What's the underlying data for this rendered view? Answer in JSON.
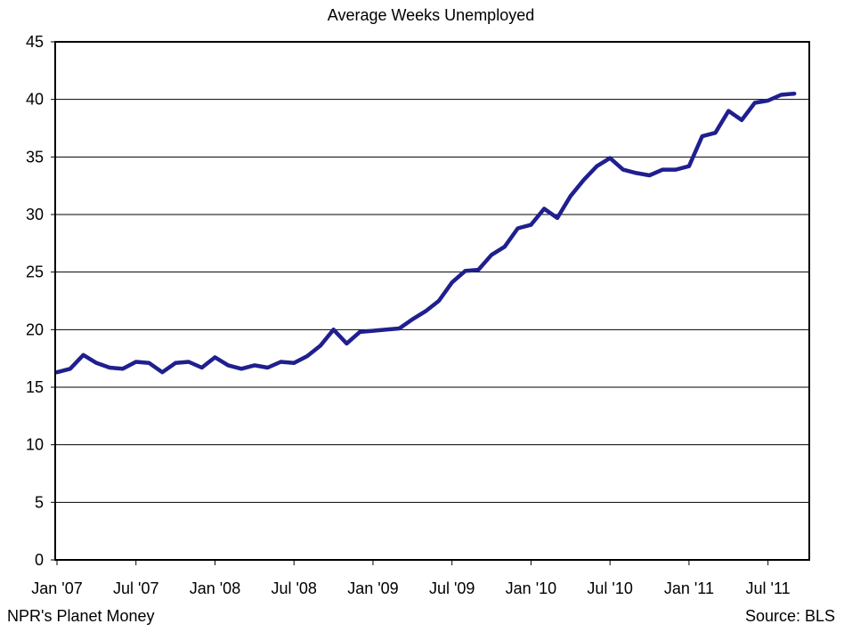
{
  "footer": {
    "credit": "NPR's Planet Money",
    "source": "Source: BLS"
  },
  "colors": {
    "line": "#1f1f8f",
    "grid": "#000000",
    "background": "#ffffff"
  },
  "chart_data": {
    "type": "line",
    "title": "Average Weeks Unemployed",
    "xlabel": "",
    "ylabel": "",
    "ylim": [
      0,
      45
    ],
    "yticks": [
      0,
      5,
      10,
      15,
      20,
      25,
      30,
      35,
      40,
      45
    ],
    "grid": true,
    "legend": "none",
    "x_start": "Jan '07",
    "x_tick_labels": [
      "Jan '07",
      "Jul '07",
      "Jan '08",
      "Jul '08",
      "Jan '09",
      "Jul '09",
      "Jan '10",
      "Jul '10",
      "Jan '11",
      "Jul '11"
    ],
    "x_tick_months": [
      0,
      6,
      12,
      18,
      24,
      30,
      36,
      42,
      48,
      54
    ],
    "x_range_months": [
      0,
      57
    ],
    "series": [
      {
        "months": [
          0,
          1,
          2,
          3,
          4,
          5,
          6,
          7,
          8,
          9,
          10,
          11,
          12,
          13,
          14,
          15,
          16,
          17,
          18,
          19,
          20,
          21,
          22,
          23,
          24,
          25,
          26,
          27,
          28,
          29,
          30,
          31,
          32,
          33,
          34,
          35,
          36,
          37,
          38,
          39,
          40,
          41,
          42,
          43,
          44,
          45,
          46,
          47,
          48,
          49,
          50,
          51,
          52,
          53,
          54,
          55,
          56
        ],
        "values": [
          16.3,
          16.6,
          17.8,
          17.1,
          16.7,
          16.6,
          17.2,
          17.1,
          16.3,
          17.1,
          17.2,
          16.7,
          17.6,
          16.9,
          16.6,
          16.9,
          16.7,
          17.2,
          17.1,
          17.7,
          18.6,
          20.0,
          18.8,
          19.8,
          19.9,
          20.0,
          20.1,
          20.9,
          21.6,
          22.5,
          24.1,
          25.1,
          25.2,
          26.5,
          27.2,
          28.8,
          29.1,
          30.5,
          29.7,
          31.6,
          33.0,
          34.2,
          34.9,
          33.9,
          33.6,
          33.4,
          33.9,
          33.9,
          34.2,
          36.8,
          37.1,
          39.0,
          38.2,
          39.7,
          39.9,
          40.4,
          40.5
        ]
      }
    ]
  }
}
